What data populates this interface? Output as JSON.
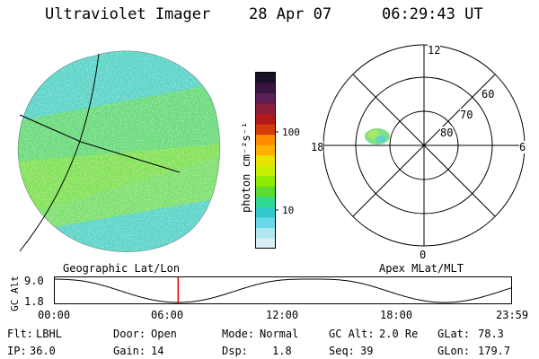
{
  "header": {
    "title": "Ultraviolet Imager",
    "date": "28 Apr 07",
    "time": "06:29:43 UT"
  },
  "colorbar": {
    "unit_label": "photon cm⁻²s⁻¹",
    "ticks": [
      "100",
      "10"
    ],
    "colors": [
      "#1a0f28",
      "#3a1540",
      "#5a1f55",
      "#8a1f3a",
      "#b01a1a",
      "#d43a0a",
      "#ff8c00",
      "#ffb000",
      "#e8e400",
      "#c8f000",
      "#8eea00",
      "#5cdc30",
      "#30d890",
      "#30c8c8",
      "#6ad8e8",
      "#b0e8f0",
      "#d8f0f4"
    ]
  },
  "polar": {
    "mlt_labels": {
      "top": "12",
      "left": "18",
      "right": "6",
      "bottom": "0"
    },
    "lat_labels": [
      "60",
      "70",
      "80"
    ]
  },
  "projection_labels": {
    "left": "Geographic Lat/Lon",
    "right": "Apex MLat/MLT"
  },
  "timeline": {
    "ylabel": "GC Alt",
    "y_ticks": [
      "9.0",
      "1.8"
    ],
    "x_ticks": [
      "00:00",
      "06:00",
      "12:00",
      "18:00",
      "23:59"
    ],
    "marker_time": "06:29",
    "colors": {
      "marker": "#dd0000"
    }
  },
  "info": {
    "row1": [
      {
        "label": "Flt:",
        "value": "LBHL"
      },
      {
        "label": "Door:",
        "value": "Open"
      },
      {
        "label": "Mode:",
        "value": "Normal"
      },
      {
        "label": "GC Alt:",
        "value": "2.0 Re"
      },
      {
        "label": "GLat:",
        "value": "78.3"
      }
    ],
    "row2": [
      {
        "label": "IP:",
        "value": "36.0"
      },
      {
        "label": "Gain:",
        "value": "14"
      },
      {
        "label": "Dsp:",
        "value": "1.8"
      },
      {
        "label": "Seq:",
        "value": "39"
      },
      {
        "label": "GLon:",
        "value": "179.7"
      }
    ]
  }
}
